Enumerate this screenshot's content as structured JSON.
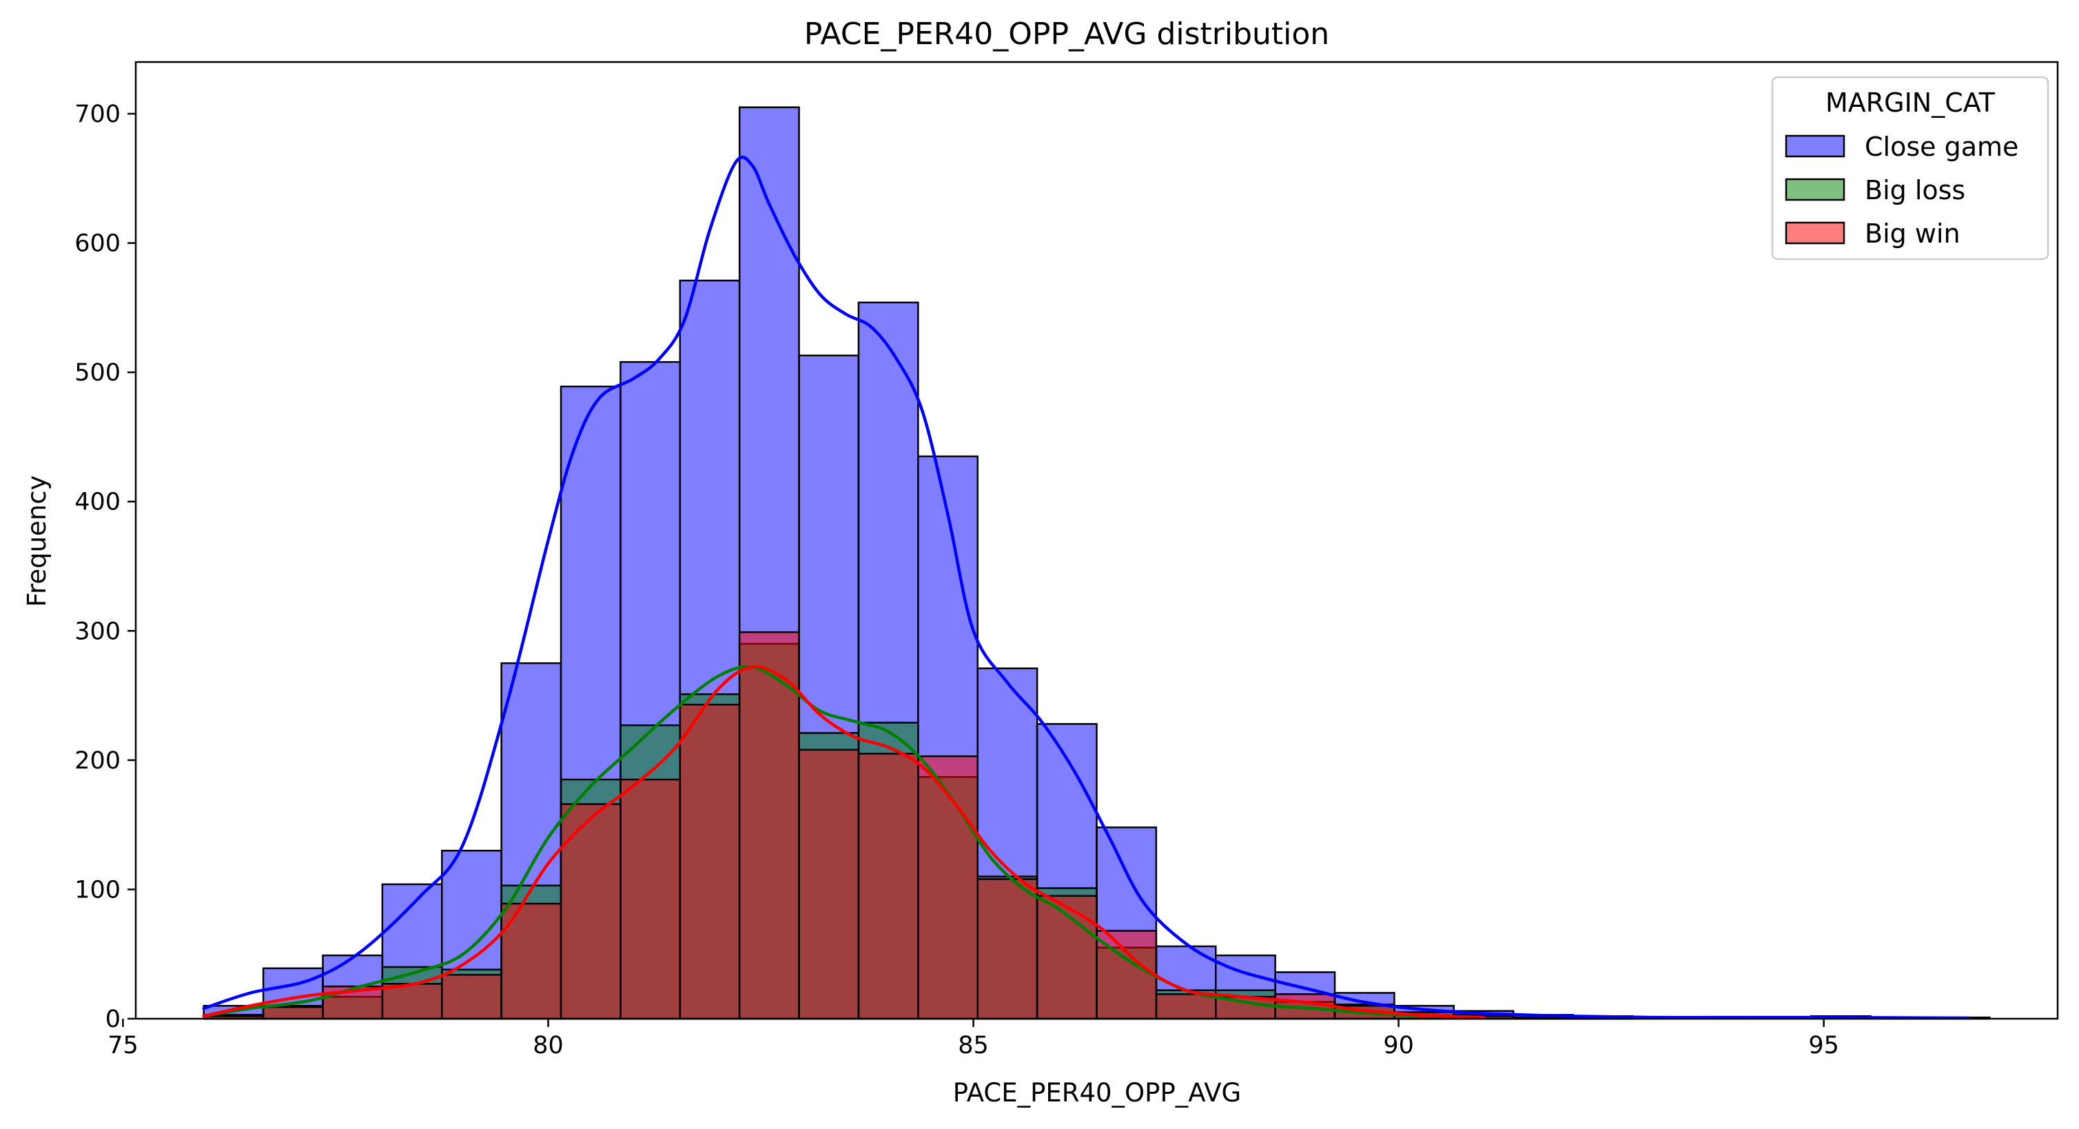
{
  "chart_data": {
    "type": "bar",
    "subtype": "histogram-with-kde",
    "title": "PACE_PER40_OPP_AVG distribution",
    "xlabel": "PACE_PER40_OPP_AVG",
    "ylabel": "Frequency",
    "xlim": [
      75.15,
      97.75
    ],
    "ylim": [
      0,
      740
    ],
    "x_ticks": [
      75,
      80,
      85,
      90,
      95
    ],
    "y_ticks": [
      0,
      100,
      200,
      300,
      400,
      500,
      600,
      700
    ],
    "grid": false,
    "legend": {
      "title": "MARGIN_CAT",
      "placement": "top-right"
    },
    "bin_start": 75.95,
    "bin_width": 0.7,
    "series": [
      {
        "name": "Close game",
        "color": "#0000ff",
        "values": [
          10,
          39,
          49,
          104,
          130,
          275,
          489,
          508,
          571,
          705,
          513,
          554,
          435,
          271,
          228,
          148,
          56,
          49,
          36,
          20,
          10,
          6,
          3,
          2,
          1,
          1,
          1,
          2,
          1,
          1
        ],
        "kde": [
          [
            75.95,
            8
          ],
          [
            76.5,
            20
          ],
          [
            77.2,
            30
          ],
          [
            77.8,
            52
          ],
          [
            78.5,
            95
          ],
          [
            79.0,
            135
          ],
          [
            79.5,
            240
          ],
          [
            80.0,
            370
          ],
          [
            80.3,
            440
          ],
          [
            80.6,
            480
          ],
          [
            81.0,
            495
          ],
          [
            81.3,
            510
          ],
          [
            81.6,
            540
          ],
          [
            81.9,
            610
          ],
          [
            82.2,
            662
          ],
          [
            82.4,
            660
          ],
          [
            82.6,
            630
          ],
          [
            82.9,
            590
          ],
          [
            83.2,
            560
          ],
          [
            83.5,
            545
          ],
          [
            83.8,
            535
          ],
          [
            84.1,
            510
          ],
          [
            84.4,
            470
          ],
          [
            84.7,
            390
          ],
          [
            85.0,
            300
          ],
          [
            85.4,
            260
          ],
          [
            85.8,
            230
          ],
          [
            86.2,
            190
          ],
          [
            86.6,
            140
          ],
          [
            87.0,
            90
          ],
          [
            87.5,
            58
          ],
          [
            88.0,
            40
          ],
          [
            88.5,
            30
          ],
          [
            89.0,
            22
          ],
          [
            89.5,
            14
          ],
          [
            90.0,
            9
          ],
          [
            90.5,
            6
          ],
          [
            91.0,
            4
          ],
          [
            92.0,
            2
          ],
          [
            93.0,
            1
          ],
          [
            94.0,
            1
          ],
          [
            95.0,
            1
          ],
          [
            96.7,
            0.5
          ]
        ]
      },
      {
        "name": "Big loss",
        "color": "#008000",
        "values": [
          3,
          10,
          17,
          40,
          38,
          103,
          185,
          227,
          251,
          290,
          221,
          229,
          187,
          110,
          101,
          55,
          22,
          22,
          13,
          11,
          5,
          3,
          1,
          1,
          0,
          0,
          0,
          0,
          0,
          0
        ],
        "kde": [
          [
            75.95,
            2
          ],
          [
            76.5,
            8
          ],
          [
            77.2,
            14
          ],
          [
            77.8,
            25
          ],
          [
            78.5,
            37
          ],
          [
            79.0,
            50
          ],
          [
            79.5,
            85
          ],
          [
            80.0,
            140
          ],
          [
            80.5,
            180
          ],
          [
            81.0,
            210
          ],
          [
            81.5,
            240
          ],
          [
            82.0,
            265
          ],
          [
            82.4,
            272
          ],
          [
            82.8,
            258
          ],
          [
            83.2,
            238
          ],
          [
            83.6,
            230
          ],
          [
            84.0,
            222
          ],
          [
            84.4,
            200
          ],
          [
            84.8,
            165
          ],
          [
            85.2,
            125
          ],
          [
            85.6,
            100
          ],
          [
            86.0,
            85
          ],
          [
            86.5,
            60
          ],
          [
            87.0,
            38
          ],
          [
            87.5,
            22
          ],
          [
            88.0,
            15
          ],
          [
            88.5,
            10
          ],
          [
            89.0,
            8
          ],
          [
            89.5,
            5
          ],
          [
            90.0,
            3
          ],
          [
            90.5,
            2
          ],
          [
            91.0,
            1
          ]
        ]
      },
      {
        "name": "Big win",
        "color": "#ff0000",
        "values": [
          2,
          9,
          25,
          27,
          34,
          89,
          166,
          185,
          243,
          299,
          208,
          205,
          203,
          108,
          95,
          68,
          19,
          17,
          19,
          10,
          5,
          2,
          1,
          1,
          0,
          0,
          0,
          0,
          0,
          0
        ],
        "kde": [
          [
            75.95,
            2
          ],
          [
            76.5,
            10
          ],
          [
            77.2,
            18
          ],
          [
            77.8,
            22
          ],
          [
            78.5,
            28
          ],
          [
            79.0,
            42
          ],
          [
            79.5,
            70
          ],
          [
            80.0,
            120
          ],
          [
            80.5,
            155
          ],
          [
            81.0,
            180
          ],
          [
            81.5,
            210
          ],
          [
            82.0,
            255
          ],
          [
            82.4,
            272
          ],
          [
            82.8,
            262
          ],
          [
            83.2,
            235
          ],
          [
            83.6,
            218
          ],
          [
            84.0,
            210
          ],
          [
            84.4,
            195
          ],
          [
            84.8,
            165
          ],
          [
            85.2,
            130
          ],
          [
            85.6,
            105
          ],
          [
            86.0,
            90
          ],
          [
            86.5,
            70
          ],
          [
            87.0,
            40
          ],
          [
            87.5,
            22
          ],
          [
            88.0,
            18
          ],
          [
            88.5,
            15
          ],
          [
            89.0,
            12
          ],
          [
            89.5,
            7
          ],
          [
            90.0,
            4
          ],
          [
            90.5,
            2
          ],
          [
            91.0,
            1
          ]
        ]
      }
    ]
  }
}
